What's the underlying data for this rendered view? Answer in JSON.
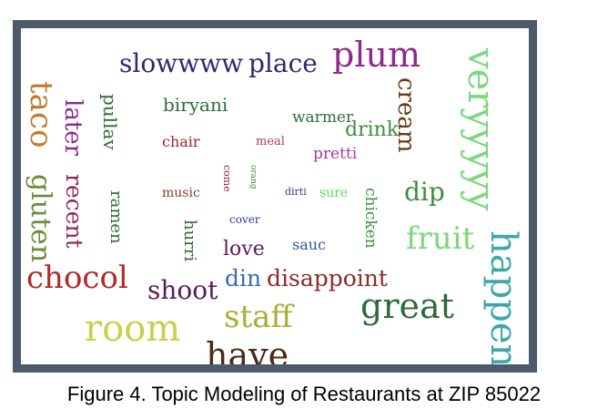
{
  "caption": "Figure 4. Topic Modeling of Restaurants at ZIP 85022",
  "wordcloud": {
    "words": [
      {
        "text": "slowwww",
        "color": "#2b2b6e"
      },
      {
        "text": "place",
        "color": "#2b2b6e"
      },
      {
        "text": "plum",
        "color": "#8e2a8e"
      },
      {
        "text": "veryyyyy",
        "color": "#7bd87b"
      },
      {
        "text": "taco",
        "color": "#c47a2c"
      },
      {
        "text": "later",
        "color": "#8e2a8e"
      },
      {
        "text": "pullav",
        "color": "#2e6b3a"
      },
      {
        "text": "biryani",
        "color": "#2e6b3a"
      },
      {
        "text": "cream",
        "color": "#6b3a14"
      },
      {
        "text": "warmer",
        "color": "#2e6b3a"
      },
      {
        "text": "drink",
        "color": "#3e8f3e"
      },
      {
        "text": "chair",
        "color": "#8e2a2a"
      },
      {
        "text": "meal",
        "color": "#b03a5a"
      },
      {
        "text": "pretti",
        "color": "#b03a8e"
      },
      {
        "text": "gluten",
        "color": "#6b8e3a"
      },
      {
        "text": "recent",
        "color": "#8e2a5a"
      },
      {
        "text": "ramen",
        "color": "#2e6b3a"
      },
      {
        "text": "music",
        "color": "#8e3a2a"
      },
      {
        "text": "come",
        "color": "#8e2a5a"
      },
      {
        "text": "orang",
        "color": "#3e8f3e"
      },
      {
        "text": "dirti",
        "color": "#2b3a8e"
      },
      {
        "text": "sure",
        "color": "#5ad85a"
      },
      {
        "text": "chicken",
        "color": "#3e8f3e"
      },
      {
        "text": "dip",
        "color": "#3e8f3e"
      },
      {
        "text": "cover",
        "color": "#2b3a8e"
      },
      {
        "text": "hurri",
        "color": "#2e6b3a"
      },
      {
        "text": "love",
        "color": "#5a1a5a"
      },
      {
        "text": "sauc",
        "color": "#2b5a8e"
      },
      {
        "text": "fruit",
        "color": "#7bd87b"
      },
      {
        "text": "happen",
        "color": "#3ea8a8"
      },
      {
        "text": "chocol",
        "color": "#b02a2a"
      },
      {
        "text": "shoot",
        "color": "#5a1a5a"
      },
      {
        "text": "din",
        "color": "#3a6bb0"
      },
      {
        "text": "disappoint",
        "color": "#8e2a2a"
      },
      {
        "text": "great",
        "color": "#2e6b3a"
      },
      {
        "text": "room",
        "color": "#c8d04a"
      },
      {
        "text": "staff",
        "color": "#a8b03a"
      },
      {
        "text": "have",
        "color": "#4a2a14"
      }
    ]
  }
}
